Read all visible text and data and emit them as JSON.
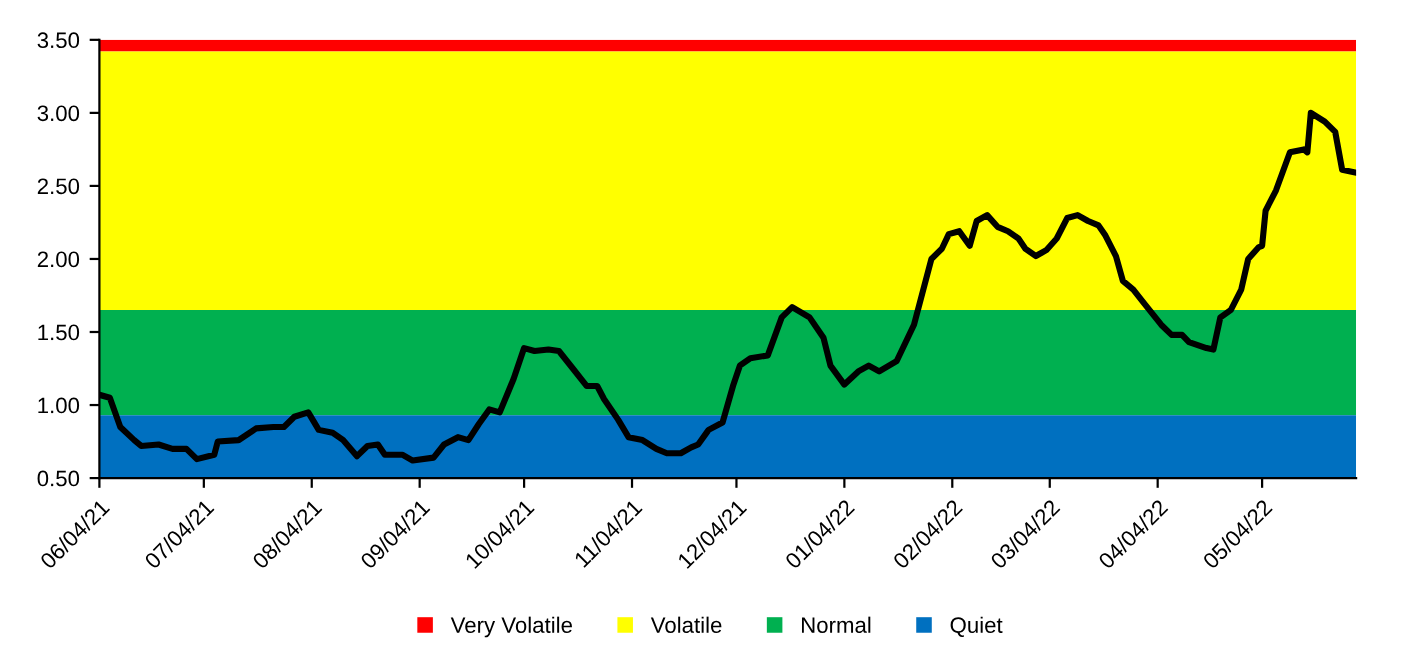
{
  "chart_data": {
    "type": "line",
    "x": [
      "2021-06-04",
      "2021-06-07",
      "2021-06-10",
      "2021-06-14",
      "2021-06-16",
      "2021-06-21",
      "2021-06-25",
      "2021-06-29",
      "2021-07-02",
      "2021-07-07",
      "2021-07-08",
      "2021-07-14",
      "2021-07-19",
      "2021-07-24",
      "2021-07-27",
      "2021-07-30",
      "2021-08-03",
      "2021-08-06",
      "2021-08-10",
      "2021-08-13",
      "2021-08-17",
      "2021-08-20",
      "2021-08-23",
      "2021-08-25",
      "2021-08-30",
      "2021-09-02",
      "2021-09-08",
      "2021-09-11",
      "2021-09-15",
      "2021-09-18",
      "2021-09-21",
      "2021-09-24",
      "2021-09-27",
      "2021-10-01",
      "2021-10-04",
      "2021-10-07",
      "2021-10-11",
      "2021-10-14",
      "2021-10-18",
      "2021-10-22",
      "2021-10-25",
      "2021-10-27",
      "2021-10-31",
      "2021-11-03",
      "2021-11-07",
      "2021-11-11",
      "2021-11-14",
      "2021-11-18",
      "2021-11-21",
      "2021-11-23",
      "2021-11-26",
      "2021-11-30",
      "2021-12-03",
      "2021-12-05",
      "2021-12-08",
      "2021-12-13",
      "2021-12-17",
      "2021-12-20",
      "2021-12-25",
      "2021-12-29",
      "2021-12-31",
      "2022-01-04",
      "2022-01-08",
      "2022-01-11",
      "2022-01-14",
      "2022-01-19",
      "2022-01-24",
      "2022-01-29",
      "2022-02-01",
      "2022-02-03",
      "2022-02-06",
      "2022-02-09",
      "2022-02-11",
      "2022-02-14",
      "2022-02-17",
      "2022-02-20",
      "2022-02-23",
      "2022-02-25",
      "2022-02-28",
      "2022-03-03",
      "2022-03-06",
      "2022-03-09",
      "2022-03-12",
      "2022-03-15",
      "2022-03-18",
      "2022-03-20",
      "2022-03-23",
      "2022-03-25",
      "2022-03-28",
      "2022-03-31",
      "2022-04-05",
      "2022-04-08",
      "2022-04-11",
      "2022-04-13",
      "2022-04-18",
      "2022-04-20",
      "2022-04-22",
      "2022-04-25",
      "2022-04-28",
      "2022-04-30",
      "2022-05-03",
      "2022-05-04",
      "2022-05-05",
      "2022-05-08",
      "2022-05-12",
      "2022-05-16",
      "2022-05-17",
      "2022-05-18",
      "2022-05-22",
      "2022-05-25",
      "2022-05-27",
      "2022-05-31"
    ],
    "series": [
      {
        "color": "#000000",
        "values": [
          1.07,
          1.05,
          0.85,
          0.76,
          0.72,
          0.73,
          0.7,
          0.7,
          0.63,
          0.66,
          0.75,
          0.76,
          0.84,
          0.85,
          0.85,
          0.92,
          0.95,
          0.83,
          0.81,
          0.76,
          0.65,
          0.72,
          0.73,
          0.66,
          0.66,
          0.62,
          0.64,
          0.73,
          0.78,
          0.76,
          0.87,
          0.97,
          0.95,
          1.18,
          1.39,
          1.37,
          1.38,
          1.37,
          1.25,
          1.13,
          1.13,
          1.04,
          0.9,
          0.78,
          0.76,
          0.7,
          0.67,
          0.67,
          0.71,
          0.73,
          0.83,
          0.88,
          1.13,
          1.27,
          1.32,
          1.34,
          1.6,
          1.67,
          1.6,
          1.46,
          1.27,
          1.14,
          1.23,
          1.27,
          1.23,
          1.3,
          1.55,
          2.0,
          2.07,
          2.17,
          2.19,
          2.09,
          2.26,
          2.3,
          2.22,
          2.19,
          2.14,
          2.07,
          2.02,
          2.06,
          2.14,
          2.28,
          2.3,
          2.26,
          2.23,
          2.16,
          2.02,
          1.85,
          1.79,
          1.7,
          1.55,
          1.48,
          1.48,
          1.43,
          1.39,
          1.38,
          1.6,
          1.65,
          1.79,
          2.0,
          2.08,
          2.09,
          2.33,
          2.47,
          2.73,
          2.75,
          2.73,
          3.0,
          2.94,
          2.87,
          2.61,
          2.59
        ]
      }
    ],
    "bands": [
      {
        "axis": "y",
        "from": 3.42,
        "to": 3.5,
        "label": "Very Volatile",
        "color": "#ff0000"
      },
      {
        "axis": "y",
        "from": 1.65,
        "to": 3.42,
        "label": "Volatile",
        "color": "#ffff00"
      },
      {
        "axis": "y",
        "from": 0.93,
        "to": 1.65,
        "label": "Normal",
        "color": "#00b050"
      },
      {
        "axis": "y",
        "from": 0.5,
        "to": 0.93,
        "label": "Quiet",
        "color": "#0070c0"
      }
    ],
    "xlim": [
      "2021-06-04",
      "2022-05-31"
    ],
    "xticks": [
      {
        "value": "2021-06-04",
        "label": "06/04/21"
      },
      {
        "value": "2021-07-04",
        "label": "07/04/21"
      },
      {
        "value": "2021-08-04",
        "label": "08/04/21"
      },
      {
        "value": "2021-09-04",
        "label": "09/04/21"
      },
      {
        "value": "2021-10-04",
        "label": "10/04/21"
      },
      {
        "value": "2021-11-04",
        "label": "11/04/21"
      },
      {
        "value": "2021-12-04",
        "label": "12/04/21"
      },
      {
        "value": "2022-01-04",
        "label": "01/04/22"
      },
      {
        "value": "2022-02-04",
        "label": "02/04/22"
      },
      {
        "value": "2022-03-04",
        "label": "03/04/22"
      },
      {
        "value": "2022-04-04",
        "label": "04/04/22"
      },
      {
        "value": "2022-05-04",
        "label": "05/04/22"
      }
    ],
    "ylim": [
      0.5,
      3.5
    ],
    "yticks": [
      {
        "value": 0.5,
        "label": "0.50"
      },
      {
        "value": 1.0,
        "label": "1.00"
      },
      {
        "value": 1.5,
        "label": "1.50"
      },
      {
        "value": 2.0,
        "label": "2.00"
      },
      {
        "value": 2.5,
        "label": "2.50"
      },
      {
        "value": 3.0,
        "label": "3.00"
      },
      {
        "value": 3.5,
        "label": "3.50"
      }
    ],
    "grid": false,
    "legend": "bottom",
    "marker": "none",
    "line_style": "solid"
  }
}
